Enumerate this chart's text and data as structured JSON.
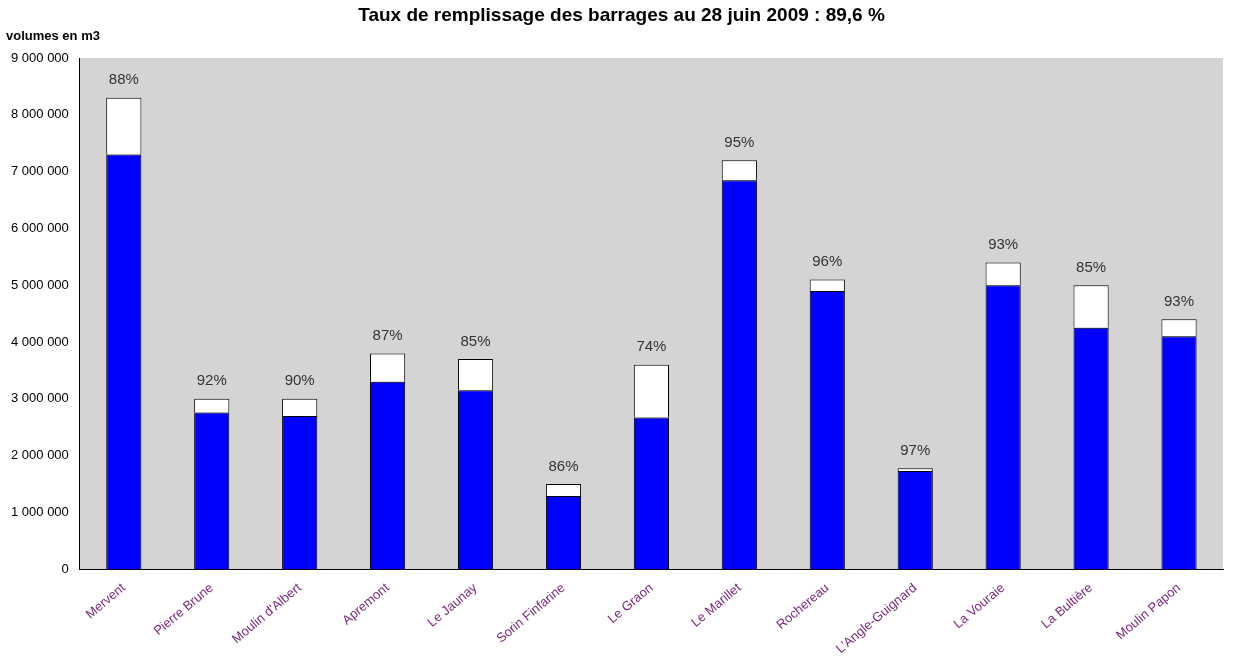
{
  "chart_data": {
    "type": "bar",
    "title": "Taux de remplissage des barrages au 28 juin 2009 :  89,6 %",
    "ylabel": "volumes en m3",
    "categories": [
      "Mervent",
      "Pierre Brune",
      "Moulin d'Albert",
      "Apremont",
      "Le Jaunay",
      "Sorin Finfarine",
      "Le Graon",
      "Le Marillet",
      "Rochereau",
      "L'Angle-Guignard",
      "La Vouraie",
      "La Bultière",
      "Moulin Papon"
    ],
    "series": [
      {
        "color": "#0000ff",
        "values": [
          7300000,
          2760000,
          2700000,
          3300000,
          3150000,
          1290000,
          2670000,
          6850000,
          4900000,
          1730000,
          5000000,
          4250000,
          4100000
        ]
      },
      {
        "color": "#ffffff",
        "values": [
          1000000,
          240000,
          300000,
          500000,
          550000,
          210000,
          930000,
          350000,
          200000,
          50000,
          400000,
          750000,
          300000
        ]
      }
    ],
    "stacked": true,
    "ylim": [
      0,
      9000000
    ],
    "yticks": [
      {
        "value": 0,
        "label": "0"
      },
      {
        "value": 1000000,
        "label": "1 000 000"
      },
      {
        "value": 2000000,
        "label": "2 000 000"
      },
      {
        "value": 3000000,
        "label": "3 000 000"
      },
      {
        "value": 4000000,
        "label": "4 000 000"
      },
      {
        "value": 5000000,
        "label": "5 000 000"
      },
      {
        "value": 6000000,
        "label": "6 000 000"
      },
      {
        "value": 7000000,
        "label": "7 000 000"
      },
      {
        "value": 8000000,
        "label": "8 000 000"
      },
      {
        "value": 9000000,
        "label": "9 000 000"
      }
    ],
    "grid": false,
    "legend": false,
    "annotations": [
      {
        "text": "88%",
        "x": "Mervent",
        "y": 8300000
      },
      {
        "text": "92%",
        "x": "Pierre Brune",
        "y": 3000000
      },
      {
        "text": "90%",
        "x": "Moulin d'Albert",
        "y": 3000000
      },
      {
        "text": "87%",
        "x": "Apremont",
        "y": 3800000
      },
      {
        "text": "85%",
        "x": "Le Jaunay",
        "y": 3700000
      },
      {
        "text": "86%",
        "x": "Sorin Finfarine",
        "y": 1500000
      },
      {
        "text": "74%",
        "x": "Le Graon",
        "y": 3600000
      },
      {
        "text": "95%",
        "x": "Le Marillet",
        "y": 7200000
      },
      {
        "text": "96%",
        "x": "Rochereau",
        "y": 5100000
      },
      {
        "text": "97%",
        "x": "L'Angle-Guignard",
        "y": 1780000
      },
      {
        "text": "93%",
        "x": "La Vouraie",
        "y": 5400000
      },
      {
        "text": "85%",
        "x": "La Bultière",
        "y": 5000000
      },
      {
        "text": "93%",
        "x": "Moulin Papon",
        "y": 4400000
      }
    ]
  }
}
